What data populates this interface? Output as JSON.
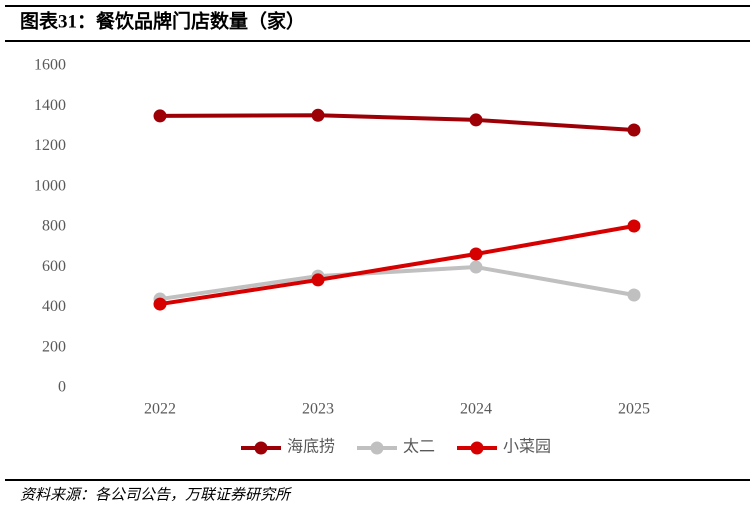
{
  "title": "图表31：餐饮品牌门店数量（家）",
  "source": "资料来源：各公司公告，万联证券研究所",
  "chart_data": {
    "type": "line",
    "categories": [
      "2022",
      "2023",
      "2024",
      "2025"
    ],
    "series": [
      {
        "name": "海底捞",
        "color": "#9c0006",
        "values": [
          1352,
          1355,
          1332,
          1282
        ]
      },
      {
        "name": "太二",
        "color": "#c0c0c0",
        "values": [
          442,
          556,
          601,
          462
        ]
      },
      {
        "name": "小菜园",
        "color": "#d60000",
        "values": [
          417,
          537,
          666,
          805
        ]
      }
    ],
    "ylim": [
      0,
      1600
    ],
    "yticks": [
      0,
      200,
      400,
      600,
      800,
      1000,
      1200,
      1400,
      1600
    ],
    "grid": false,
    "legend": "bottom"
  }
}
